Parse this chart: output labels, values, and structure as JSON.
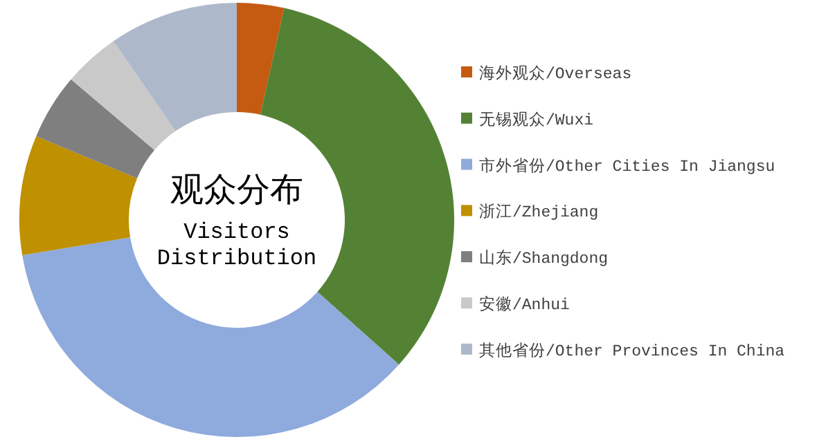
{
  "chart_data": {
    "type": "donut",
    "title": "观众分布",
    "subtitle": "Visitors Distribution",
    "categories": [
      "海外观众/Overseas",
      "无锡观众/Wuxi",
      "市外省份/Other Cities In Jiangsu",
      "浙江/Zhejiang",
      "山东/Shangdong",
      "安徽/Anhui",
      "其他省份/Other Provinces In China"
    ],
    "values": [
      3.5,
      33.1,
      35.8,
      8.9,
      4.9,
      4.2,
      9.6
    ],
    "colors": [
      "#c55a11",
      "#548235",
      "#8faadc",
      "#bf9000",
      "#7f7f7f",
      "#c9c9c9",
      "#adb9ca"
    ],
    "legend": "right"
  }
}
